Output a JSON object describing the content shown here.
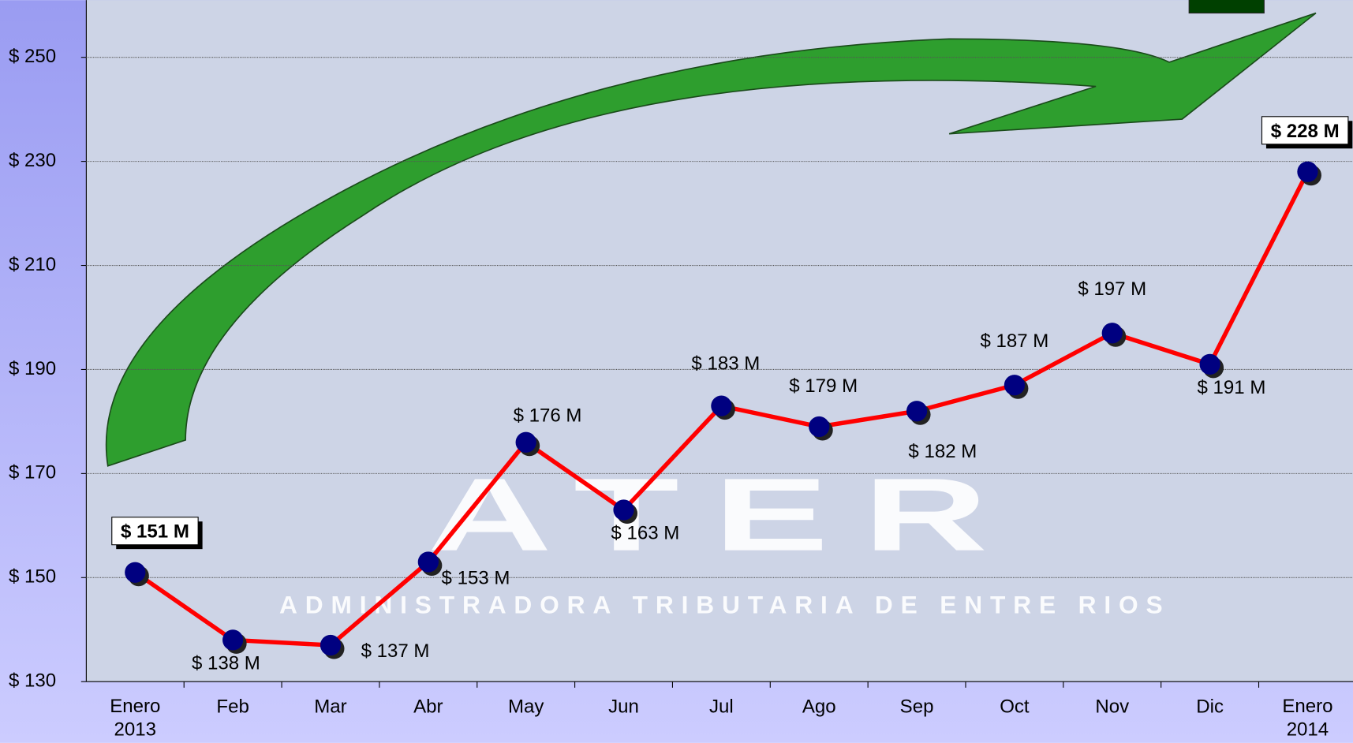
{
  "chart_data": {
    "type": "line",
    "categories": [
      "Enero 2013",
      "Feb",
      "Mar",
      "Abr",
      "May",
      "Jun",
      "Jul",
      "Ago",
      "Sep",
      "Oct",
      "Nov",
      "Dic",
      "Enero 2014"
    ],
    "series": [
      {
        "color": "#ff0000",
        "marker_color": "#000080",
        "values": [
          151,
          138,
          137,
          153,
          176,
          163,
          183,
          179,
          182,
          187,
          197,
          191,
          228
        ],
        "value_labels": [
          "$ 151 M",
          "$ 138 M",
          "$ 137 M",
          "$ 153 M",
          "$ 176 M",
          "$ 163 M",
          "$ 183 M",
          "$ 179 M",
          "$ 182 M",
          "$ 187 M",
          "$ 197 M",
          "$ 191 M",
          "$ 228 M"
        ]
      }
    ],
    "ylim": [
      130,
      261
    ],
    "yticks": [
      {
        "value": 130,
        "label": "$ 130"
      },
      {
        "value": 150,
        "label": "$ 150"
      },
      {
        "value": 170,
        "label": "$ 170"
      },
      {
        "value": 190,
        "label": "$ 190"
      },
      {
        "value": 210,
        "label": "$ 210"
      },
      {
        "value": 230,
        "label": "$ 230"
      },
      {
        "value": 250,
        "label": "$ 250"
      }
    ],
    "grid": true
  },
  "watermark": {
    "logo": "ATER",
    "subtitle": "ADMINISTRADORA TRIBUTARIA DE ENTRE RIOS"
  }
}
